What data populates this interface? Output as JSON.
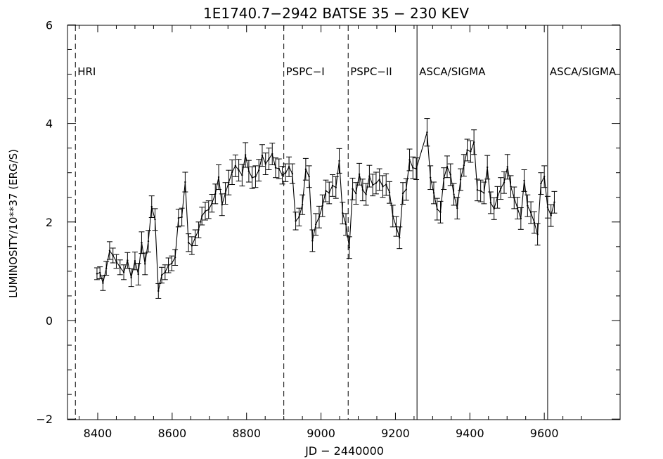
{
  "chart_data": {
    "type": "line",
    "title": "1E1740.7−2942  BATSE 35 − 230 KEV",
    "xlabel": "JD − 2440000",
    "ylabel": "LUMINOSITY/10**37 (ERG/S)",
    "xlim": [
      8300,
      9700
    ],
    "ylim": [
      -2,
      6
    ],
    "x_ticks": [
      8400,
      8600,
      8800,
      9000,
      9200,
      9400,
      9600
    ],
    "y_ticks": [
      -2,
      0,
      2,
      4,
      6
    ],
    "grid": false,
    "legend": "none",
    "markers": [
      {
        "label": "HRI",
        "x": 8340,
        "style": "dashed"
      },
      {
        "label": "PSPC−I",
        "x": 8900,
        "style": "dashed"
      },
      {
        "label": "PSPC−II",
        "x": 9073,
        "style": "dashed"
      },
      {
        "label": "ASCA/SIGMA",
        "x": 9258,
        "style": "solid"
      },
      {
        "label": "ASCA/SIGMA",
        "x": 9609,
        "style": "solid"
      }
    ],
    "series": [
      {
        "x": [
          8398,
          8406,
          8414,
          8423,
          8432,
          8441,
          8450,
          8460,
          8470,
          8480,
          8490,
          8500,
          8509,
          8518,
          8527,
          8536,
          8545,
          8554,
          8563,
          8572,
          8581,
          8590,
          8599,
          8608,
          8617,
          8626,
          8635,
          8644,
          8653,
          8662,
          8671,
          8680,
          8689,
          8698,
          8707,
          8716,
          8725,
          8734,
          8743,
          8752,
          8761,
          8770,
          8779,
          8788,
          8797,
          8806,
          8815,
          8824,
          8833,
          8842,
          8851,
          8860,
          8869,
          8878,
          8887,
          8896,
          8905,
          8914,
          8923,
          8932,
          8941,
          8950,
          8959,
          8968,
          8977,
          8986,
          8995,
          9004,
          9013,
          9022,
          9031,
          9040,
          9049,
          9058,
          9067,
          9076,
          9085,
          9094,
          9103,
          9112,
          9121,
          9130,
          9139,
          9148,
          9157,
          9166,
          9175,
          9184,
          9193,
          9202,
          9211,
          9220,
          9229,
          9238,
          9247,
          9256,
          9285,
          9294,
          9303,
          9312,
          9321,
          9330,
          9339,
          9348,
          9357,
          9366,
          9375,
          9384,
          9393,
          9402,
          9411,
          9420,
          9429,
          9438,
          9447,
          9456,
          9465,
          9474,
          9483,
          9492,
          9501,
          9510,
          9519,
          9528,
          9537,
          9546,
          9555,
          9564,
          9573,
          9582,
          9591,
          9600,
          9609,
          9618,
          9627
        ],
        "y": [
          0.95,
          0.97,
          0.76,
          1.06,
          1.42,
          1.32,
          1.2,
          1.08,
          0.98,
          1.22,
          0.87,
          1.21,
          0.94,
          1.58,
          1.15,
          1.61,
          2.31,
          2.05,
          0.6,
          0.92,
          0.98,
          1.12,
          1.16,
          1.28,
          2.08,
          2.1,
          2.81,
          1.58,
          1.52,
          1.68,
          1.84,
          2.12,
          2.22,
          2.25,
          2.38,
          2.57,
          2.91,
          2.35,
          2.58,
          2.8,
          3.01,
          3.14,
          3.05,
          2.95,
          3.36,
          3.03,
          2.9,
          2.92,
          3.05,
          3.35,
          3.18,
          3.28,
          3.38,
          3.1,
          3.08,
          2.95,
          3.0,
          3.12,
          2.98,
          2.02,
          2.1,
          2.35,
          3.07,
          2.92,
          1.62,
          1.95,
          2.1,
          2.33,
          2.63,
          2.59,
          2.74,
          2.7,
          3.24,
          2.18,
          1.95,
          1.48,
          2.67,
          2.58,
          2.97,
          2.65,
          2.56,
          2.93,
          2.75,
          2.79,
          2.86,
          2.72,
          2.76,
          2.6,
          2.12,
          1.91,
          1.68,
          2.58,
          2.66,
          3.26,
          3.1,
          3.08,
          3.82,
          2.9,
          2.59,
          2.26,
          2.2,
          2.88,
          3.12,
          2.96,
          2.56,
          2.28,
          2.86,
          3.15,
          3.46,
          3.43,
          3.62,
          2.65,
          2.63,
          2.59,
          3.11,
          2.39,
          2.27,
          2.5,
          2.68,
          2.8,
          3.12,
          2.72,
          2.49,
          2.28,
          2.07,
          2.84,
          2.33,
          2.19,
          1.99,
          1.75,
          2.78,
          2.92,
          2.3,
          2.13,
          2.4
        ],
        "err": [
          0.12,
          0.12,
          0.15,
          0.14,
          0.18,
          0.15,
          0.14,
          0.15,
          0.15,
          0.16,
          0.18,
          0.18,
          0.22,
          0.22,
          0.22,
          0.22,
          0.22,
          0.22,
          0.15,
          0.16,
          0.15,
          0.15,
          0.15,
          0.16,
          0.18,
          0.18,
          0.2,
          0.18,
          0.18,
          0.16,
          0.16,
          0.18,
          0.18,
          0.18,
          0.18,
          0.2,
          0.25,
          0.22,
          0.22,
          0.25,
          0.25,
          0.22,
          0.22,
          0.22,
          0.25,
          0.22,
          0.22,
          0.22,
          0.22,
          0.22,
          0.22,
          0.22,
          0.22,
          0.2,
          0.2,
          0.18,
          0.18,
          0.2,
          0.2,
          0.18,
          0.18,
          0.2,
          0.22,
          0.22,
          0.22,
          0.22,
          0.22,
          0.22,
          0.22,
          0.22,
          0.22,
          0.22,
          0.25,
          0.22,
          0.22,
          0.22,
          0.22,
          0.22,
          0.22,
          0.22,
          0.22,
          0.22,
          0.22,
          0.22,
          0.22,
          0.22,
          0.22,
          0.22,
          0.22,
          0.2,
          0.22,
          0.22,
          0.22,
          0.22,
          0.22,
          0.22,
          0.28,
          0.24,
          0.22,
          0.22,
          0.22,
          0.22,
          0.22,
          0.22,
          0.22,
          0.22,
          0.22,
          0.22,
          0.22,
          0.22,
          0.25,
          0.22,
          0.22,
          0.22,
          0.24,
          0.22,
          0.22,
          0.22,
          0.22,
          0.22,
          0.25,
          0.22,
          0.22,
          0.22,
          0.22,
          0.22,
          0.22,
          0.22,
          0.22,
          0.22,
          0.22,
          0.22,
          0.22,
          0.22,
          0.22
        ]
      }
    ]
  }
}
